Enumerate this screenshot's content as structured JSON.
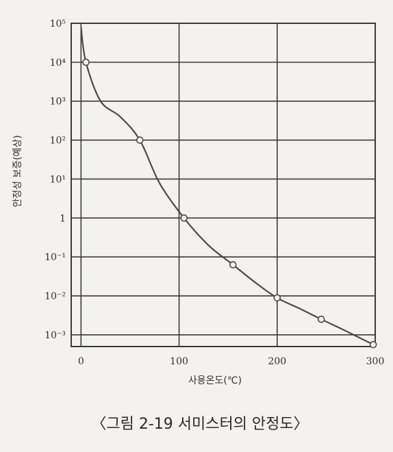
{
  "chart_data": {
    "type": "line",
    "title": "",
    "xlabel": "사용온도(℃)",
    "ylabel": "안정성 보증(예상)",
    "x_ticks": [
      "0",
      "100",
      "200",
      "300"
    ],
    "y_ticks": [
      "10⁵",
      "10⁴",
      "10³",
      "10²",
      "10¹",
      "1",
      "10⁻¹",
      "10⁻²",
      "10⁻³"
    ],
    "xlim": [
      -10,
      300
    ],
    "ylim": [
      -3.3,
      5
    ],
    "y_scale": "log",
    "grid": true,
    "colors": {
      "line": "#4a4a4a",
      "grid": "#3a3a3a",
      "marker_fill": "#f3f2ee"
    },
    "series": [
      {
        "x": [
          5,
          60,
          105,
          155,
          200,
          245,
          298
        ],
        "y": [
          4.0,
          2.0,
          0.0,
          -1.2,
          -2.05,
          -2.6,
          -3.25
        ],
        "curve_x": [
          0,
          5,
          20,
          40,
          60,
          80,
          105,
          130,
          155,
          180,
          200,
          225,
          245,
          270,
          298
        ],
        "curve_y": [
          4.9,
          4.0,
          3.0,
          2.6,
          2.0,
          0.9,
          0.0,
          -0.7,
          -1.2,
          -1.7,
          -2.05,
          -2.35,
          -2.6,
          -2.9,
          -3.25
        ]
      }
    ]
  },
  "caption": "〈그림 2-19 서미스터의 안정도〉"
}
